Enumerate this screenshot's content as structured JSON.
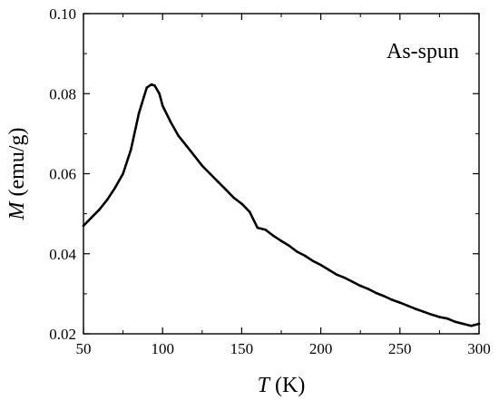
{
  "chart_data": {
    "type": "line",
    "title": "",
    "xlabel": {
      "symbol": "T",
      "unit": " (K)"
    },
    "ylabel": {
      "symbol": "M",
      "unit": " (emu/g)"
    },
    "xlim": [
      50,
      300
    ],
    "ylim": [
      0.02,
      0.1
    ],
    "x_ticks": [
      50,
      100,
      150,
      200,
      250,
      300
    ],
    "x_tick_labels": [
      "50",
      "100",
      "150",
      "200",
      "250",
      "300"
    ],
    "y_ticks": [
      0.02,
      0.04,
      0.06,
      0.08,
      0.1
    ],
    "y_tick_labels": [
      "0.02",
      "0.04",
      "0.06",
      "0.08",
      "0.10"
    ],
    "grid": false,
    "annotations": [
      {
        "text": "As-spun",
        "position": "top-right"
      }
    ],
    "series": [
      {
        "color": "#000000",
        "points": [
          [
            50,
            0.047
          ],
          [
            55,
            0.049
          ],
          [
            60,
            0.051
          ],
          [
            65,
            0.0535
          ],
          [
            70,
            0.0565
          ],
          [
            75,
            0.06
          ],
          [
            80,
            0.066
          ],
          [
            85,
            0.075
          ],
          [
            88,
            0.079
          ],
          [
            90,
            0.0815
          ],
          [
            93,
            0.0823
          ],
          [
            95,
            0.082
          ],
          [
            98,
            0.08
          ],
          [
            100,
            0.077
          ],
          [
            105,
            0.073
          ],
          [
            110,
            0.0695
          ],
          [
            115,
            0.067
          ],
          [
            120,
            0.0645
          ],
          [
            125,
            0.062
          ],
          [
            130,
            0.06
          ],
          [
            135,
            0.058
          ],
          [
            140,
            0.056
          ],
          [
            145,
            0.054
          ],
          [
            150,
            0.0525
          ],
          [
            155,
            0.0505
          ],
          [
            160,
            0.0465
          ],
          [
            165,
            0.046
          ],
          [
            170,
            0.0445
          ],
          [
            175,
            0.0432
          ],
          [
            180,
            0.042
          ],
          [
            185,
            0.0405
          ],
          [
            190,
            0.0395
          ],
          [
            195,
            0.0382
          ],
          [
            200,
            0.0372
          ],
          [
            205,
            0.036
          ],
          [
            210,
            0.0348
          ],
          [
            215,
            0.034
          ],
          [
            220,
            0.033
          ],
          [
            225,
            0.032
          ],
          [
            230,
            0.0312
          ],
          [
            235,
            0.0302
          ],
          [
            240,
            0.0294
          ],
          [
            245,
            0.0285
          ],
          [
            250,
            0.0278
          ],
          [
            255,
            0.027
          ],
          [
            260,
            0.0262
          ],
          [
            265,
            0.0255
          ],
          [
            270,
            0.0248
          ],
          [
            275,
            0.0242
          ],
          [
            280,
            0.0238
          ],
          [
            285,
            0.023
          ],
          [
            290,
            0.0225
          ],
          [
            295,
            0.022
          ],
          [
            300,
            0.0225
          ]
        ]
      }
    ]
  }
}
